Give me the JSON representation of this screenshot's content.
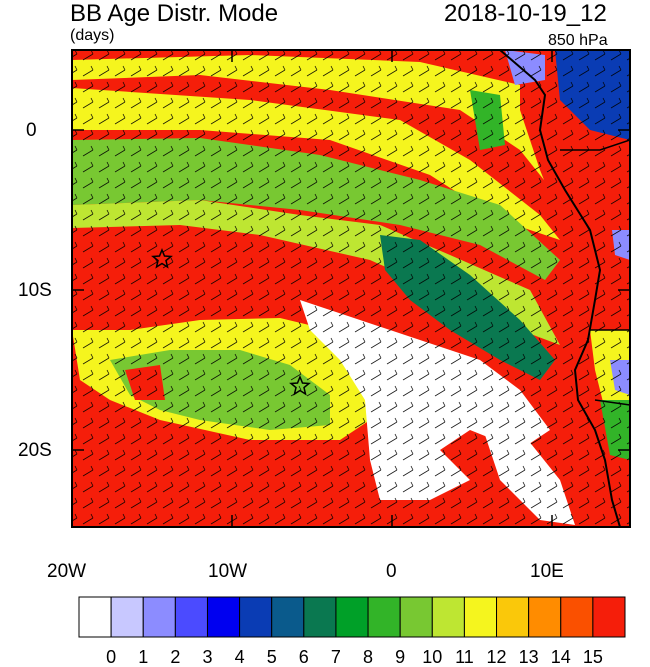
{
  "header": {
    "title": "BB Age Distr. Mode",
    "units": "(days)",
    "date": "2018-10-19_12",
    "level": "850 hPa"
  },
  "axes": {
    "lon_ticks": [
      "20W",
      "10W",
      "0",
      "10E"
    ],
    "lat_ticks": [
      "0",
      "10S",
      "20S"
    ]
  },
  "colorbar": {
    "labels": [
      "0",
      "1",
      "2",
      "3",
      "4",
      "5",
      "6",
      "7",
      "8",
      "9",
      "10",
      "11",
      "12",
      "13",
      "14",
      "15"
    ],
    "colors": [
      "#ffffff",
      "#c8c8ff",
      "#8c8cff",
      "#4b4bff",
      "#0000f0",
      "#0a3cb4",
      "#0a5a8c",
      "#0a7850",
      "#00a028",
      "#32b428",
      "#78c832",
      "#bee632",
      "#f5f51e",
      "#fac80a",
      "#ff8c00",
      "#fa5000",
      "#f51e0a"
    ]
  },
  "legend": {
    "stars": [
      "site-marker-1",
      "site-marker-2"
    ]
  }
}
